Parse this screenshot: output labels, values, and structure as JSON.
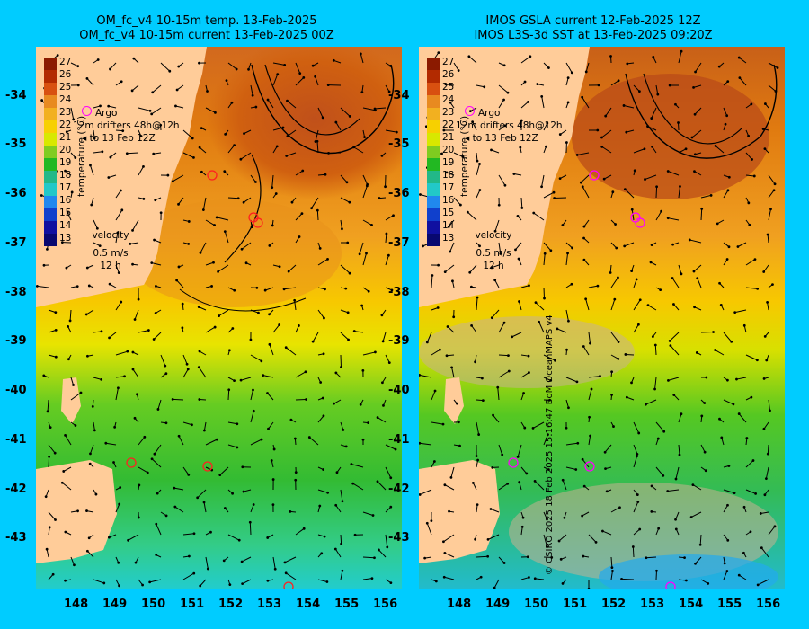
{
  "left_title": {
    "line1": "OM_fc_v4  10-15m temp. 13-Feb-2025",
    "line2": "OM_fc_v4  10-15m current 13-Feb-2025 00Z"
  },
  "right_title": {
    "line1": "IMOS GSLA current 12-Feb-2025 12Z",
    "line2": "IMOS L3S-3d SST at 13-Feb-2025 09:20Z"
  },
  "colorbar": {
    "ticks": [
      "27",
      "26",
      "25",
      "24",
      "23",
      "22",
      "21",
      "20",
      "19",
      "18",
      "17",
      "16",
      "15",
      "14",
      "13"
    ],
    "label": "temperature (°C)"
  },
  "legend": {
    "argo": "Argo",
    "drifters_prefix": "12m",
    "drifters_line1": "drifters 48h@12h",
    "drifters_line2": "to 13 Feb 12Z",
    "velocity_title": "velocity",
    "velocity_scale": "0.5 m/s",
    "velocity_time": "12 h"
  },
  "axes": {
    "lon_ticks": [
      "148",
      "149",
      "150",
      "151",
      "152",
      "153",
      "154",
      "155",
      "156"
    ],
    "lat_ticks": [
      "-34",
      "-35",
      "-36",
      "-37",
      "-38",
      "-39",
      "-40",
      "-41",
      "-42",
      "-43"
    ]
  },
  "credit": "© CSIRO 2025   18 Feb 2025 15:16:47 BoM OceanMAPS v4",
  "colors": {
    "background": "#00ccff",
    "land": "#ffcc99",
    "argo": "#ff00ff"
  }
}
